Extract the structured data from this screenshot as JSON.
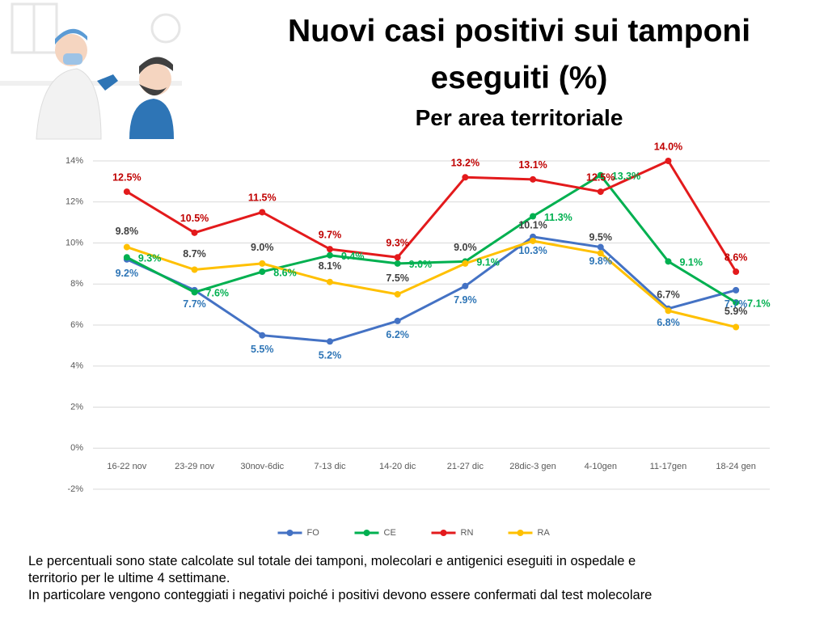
{
  "title": "Nuovi casi positivi sui tamponi eseguiti (%)",
  "subtitle": "Per area territoriale",
  "chart_data": {
    "type": "line",
    "categories": [
      "16-22 nov",
      "23-29 nov",
      "30nov-6dic",
      "7-13 dic",
      "14-20 dic",
      "21-27 dic",
      "28dic-3 gen",
      "4-10gen",
      "11-17gen",
      "18-24 gen"
    ],
    "ylim": [
      -2,
      14
    ],
    "yticks": [
      {
        "value": -2,
        "label": "-2%"
      },
      {
        "value": 0,
        "label": "0%"
      },
      {
        "value": 2,
        "label": "2%"
      },
      {
        "value": 4,
        "label": "4%"
      },
      {
        "value": 6,
        "label": "6%"
      },
      {
        "value": 8,
        "label": "8%"
      },
      {
        "value": 10,
        "label": "10%"
      },
      {
        "value": 12,
        "label": "12%"
      },
      {
        "value": 14,
        "label": "14%"
      }
    ],
    "grid": true,
    "legend": "bottom",
    "series": [
      {
        "name": "FO",
        "color": "#4472c4",
        "label_color": "#2e75b6",
        "values": [
          9.2,
          7.7,
          5.5,
          5.2,
          6.2,
          7.9,
          10.3,
          9.8,
          6.8,
          7.7
        ],
        "value_labels": [
          "9.2%",
          "7.7%",
          "5.5%",
          "5.2%",
          "6.2%",
          "7.9%",
          "10.3%",
          "9.8%",
          "6.8%",
          "7.7%"
        ]
      },
      {
        "name": "CE",
        "color": "#00b050",
        "label_color": "#00b050",
        "values": [
          9.3,
          7.6,
          8.6,
          9.4,
          9.0,
          9.1,
          11.3,
          13.3,
          9.1,
          7.1
        ],
        "value_labels": [
          "9.3%",
          "7.6%",
          "8.6%",
          "9.4%",
          "9.0%",
          "9.1%",
          "11.3%",
          "13.3%",
          "9.1%",
          "7.1%"
        ]
      },
      {
        "name": "RN",
        "color": "#e31a1c",
        "label_color": "#c00000",
        "values": [
          12.5,
          10.5,
          11.5,
          9.7,
          9.3,
          13.2,
          13.1,
          12.5,
          14.0,
          8.6
        ],
        "value_labels": [
          "12.5%",
          "10.5%",
          "11.5%",
          "9.7%",
          "9.3%",
          "13.2%",
          "13.1%",
          "12.5%",
          "14.0%",
          "8.6%"
        ]
      },
      {
        "name": "RA",
        "color": "#ffc000",
        "label_color": "#404040",
        "values": [
          9.8,
          8.7,
          9.0,
          8.1,
          7.5,
          9.0,
          10.1,
          9.5,
          6.7,
          5.9
        ],
        "value_labels": [
          "9.8%",
          "8.7%",
          "9.0%",
          "8.1%",
          "7.5%",
          "9.0%",
          "10.1%",
          "9.5%",
          "6.7%",
          "5.9%"
        ]
      }
    ]
  },
  "notes": [
    "Le percentuali sono state calcolate sul totale dei tamponi, molecolari e antigenici eseguiti in ospedale e",
    "territorio per le ultime 4 settimane.",
    "In particolare vengono conteggiati i negativi poiché i positivi devono essere confermati dal test molecolare"
  ]
}
